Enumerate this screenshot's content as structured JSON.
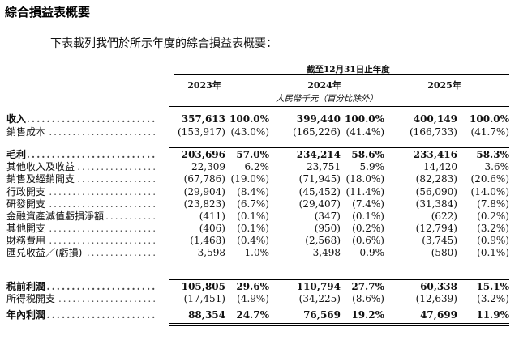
{
  "heading": "綜合損益表概要",
  "intro": "下表載列我們於所示年度的綜合損益表概要：",
  "period_header": "截至12月31日止年度",
  "years": [
    "2023年",
    "2024年",
    "2025年"
  ],
  "unit_note": "人民幣千元（百分比除外）",
  "rows": [
    {
      "label": "收入",
      "v2023": "357,613",
      "p2023": "100.0%",
      "v2024": "399,440",
      "p2024": "100.0%",
      "v2025": "400,149",
      "p2025": "100.0%",
      "bold": true
    },
    {
      "label": "銷售成本",
      "v2023": "(153,917)",
      "p2023": "(43.0%)",
      "v2024": "(165,226)",
      "p2024": "(41.4%)",
      "v2025": "(166,733)",
      "p2025": "(41.7%)",
      "bold": false
    },
    {
      "label": "毛利",
      "v2023": "203,696",
      "p2023": "57.0%",
      "v2024": "234,214",
      "p2024": "58.6%",
      "v2025": "233,416",
      "p2025": "58.3%",
      "bold": true
    },
    {
      "label": "其他收入及收益",
      "v2023": "22,309",
      "p2023": "6.2%",
      "v2024": "23,751",
      "p2024": "5.9%",
      "v2025": "14,420",
      "p2025": "3.6%",
      "bold": false
    },
    {
      "label": "銷售及經銷開支",
      "v2023": "(67,786)",
      "p2023": "(19.0%)",
      "v2024": "(71,945)",
      "p2024": "(18.0%)",
      "v2025": "(82,283)",
      "p2025": "(20.6%)",
      "bold": false
    },
    {
      "label": "行政開支",
      "v2023": "(29,904)",
      "p2023": "(8.4%)",
      "v2024": "(45,452)",
      "p2024": "(11.4%)",
      "v2025": "(56,090)",
      "p2025": "(14.0%)",
      "bold": false
    },
    {
      "label": "研發開支",
      "v2023": "(23,823)",
      "p2023": "(6.7%)",
      "v2024": "(29,407)",
      "p2024": "(7.4%)",
      "v2025": "(31,384)",
      "p2025": "(7.8%)",
      "bold": false
    },
    {
      "label": "金融資產減值虧損淨額",
      "v2023": "(411)",
      "p2023": "(0.1%)",
      "v2024": "(347)",
      "p2024": "(0.1%)",
      "v2025": "(622)",
      "p2025": "(0.2%)",
      "bold": false
    },
    {
      "label": "其他開支",
      "v2023": "(406)",
      "p2023": "(0.1%)",
      "v2024": "(950)",
      "p2024": "(0.2%)",
      "v2025": "(12,794)",
      "p2025": "(3.2%)",
      "bold": false
    },
    {
      "label": "財務費用",
      "v2023": "(1,468)",
      "p2023": "(0.4%)",
      "v2024": "(2,568)",
      "p2024": "(0.6%)",
      "v2025": "(3,745)",
      "p2025": "(0.9%)",
      "bold": false
    },
    {
      "label": "匯兑收益／(虧損)",
      "v2023": "3,598",
      "p2023": "1.0%",
      "v2024": "3,498",
      "p2024": "0.9%",
      "v2025": "(580)",
      "p2025": "(0.1%)",
      "bold": false
    },
    {
      "label": "税前利潤",
      "v2023": "105,805",
      "p2023": "29.6%",
      "v2024": "110,794",
      "p2024": "27.7%",
      "v2025": "60,338",
      "p2025": "15.1%",
      "bold": true
    },
    {
      "label": "所得税開支",
      "v2023": "(17,451)",
      "p2023": "(4.9%)",
      "v2024": "(34,225)",
      "p2024": "(8.6%)",
      "v2025": "(12,639)",
      "p2025": "(3.2%)",
      "bold": false
    },
    {
      "label": "年內利潤",
      "v2023": "88,354",
      "p2023": "24.7%",
      "v2024": "76,569",
      "p2024": "19.2%",
      "v2025": "47,699",
      "p2025": "11.9%",
      "bold": true
    }
  ]
}
